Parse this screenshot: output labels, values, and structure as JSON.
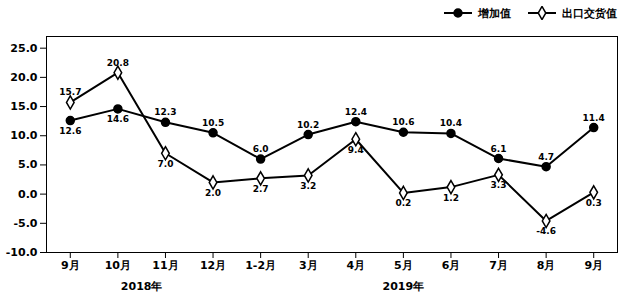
{
  "chart_data": {
    "type": "line",
    "categories": [
      "9月",
      "10月",
      "11月",
      "12月",
      "1-2月",
      "3月",
      "4月",
      "5月",
      "6月",
      "7月",
      "8月",
      "9月"
    ],
    "series": [
      {
        "name": "增加值",
        "color": "black",
        "marker": "circle",
        "values": [
          12.6,
          14.6,
          12.3,
          10.5,
          6.0,
          10.2,
          12.4,
          10.6,
          10.4,
          6.1,
          4.7,
          11.4
        ],
        "value_labels": [
          "12.6",
          "14.6",
          "12.3",
          "10.5",
          "6.0",
          "10.2",
          "12.4",
          "10.6",
          "10.4",
          "6.1",
          "4.7",
          "11.4"
        ]
      },
      {
        "name": "出口交货值",
        "color": "black",
        "marker": "hollow_diamond",
        "values": [
          15.7,
          20.8,
          7.0,
          2.0,
          2.7,
          3.2,
          9.4,
          0.2,
          1.2,
          3.3,
          -4.6,
          0.3
        ],
        "value_labels": [
          "15.7",
          "20.8",
          "7.0",
          "2.0",
          "2.7",
          "3.2",
          "9.4",
          "0.2",
          "1.2",
          "3.3",
          "-4.6",
          "0.3"
        ]
      }
    ],
    "ylim": [
      -10,
      27
    ],
    "yticks": [
      {
        "value": -10,
        "label": "-10.0"
      },
      {
        "value": -5,
        "label": "-5.0"
      },
      {
        "value": 0,
        "label": "0.0"
      },
      {
        "value": 5,
        "label": "5.0"
      },
      {
        "value": 10,
        "label": "10.0"
      },
      {
        "value": 15,
        "label": "15.0"
      },
      {
        "value": 20,
        "label": "20.0"
      },
      {
        "value": 25,
        "label": "25.0"
      }
    ],
    "legend": "upper right",
    "data_labels": true,
    "grid": false,
    "annotations": [
      {
        "text": "2018年",
        "x": 1.5
      },
      {
        "text": "2019年",
        "x": 7.0
      }
    ]
  }
}
